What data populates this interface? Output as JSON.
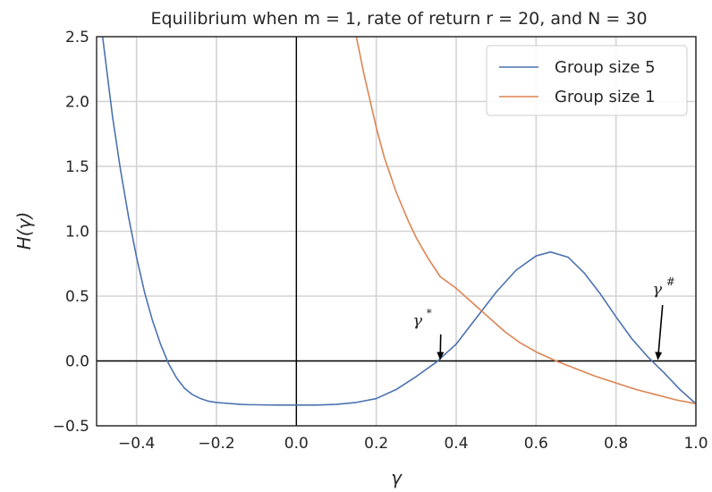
{
  "chart_data": {
    "type": "line",
    "title": "Equilibrium when m = 1, rate of return r = 20, and N = 30",
    "xlabel": "γ",
    "ylabel": "H(γ)",
    "xlim": [
      -0.5,
      1.0
    ],
    "ylim": [
      -0.5,
      2.5
    ],
    "x_ticks": [
      -0.4,
      -0.2,
      0.0,
      0.2,
      0.4,
      0.6,
      0.8,
      1.0
    ],
    "x_tick_labels": [
      "−0.4",
      "−0.2",
      "0.0",
      "0.2",
      "0.4",
      "0.6",
      "0.8",
      "1.0"
    ],
    "y_ticks": [
      -0.5,
      0.0,
      0.5,
      1.0,
      1.5,
      2.0,
      2.5
    ],
    "y_tick_labels": [
      "−0.5",
      "0.0",
      "0.5",
      "1.0",
      "1.5",
      "2.0",
      "2.5"
    ],
    "grid": true,
    "legend_position": "top-right",
    "series": [
      {
        "name": "Group size 5",
        "color": "#4c72b0",
        "x": [
          -0.485,
          -0.46,
          -0.44,
          -0.42,
          -0.4,
          -0.38,
          -0.36,
          -0.34,
          -0.32,
          -0.3,
          -0.28,
          -0.26,
          -0.24,
          -0.22,
          -0.2,
          -0.18,
          -0.16,
          -0.14,
          -0.12,
          -0.1,
          -0.05,
          0.0,
          0.05,
          0.1,
          0.15,
          0.2,
          0.25,
          0.3,
          0.35,
          0.4,
          0.45,
          0.5,
          0.55,
          0.6,
          0.636,
          0.68,
          0.72,
          0.76,
          0.8,
          0.84,
          0.88,
          0.92,
          0.96,
          1.0
        ],
        "y": [
          2.5,
          1.88,
          1.47,
          1.11,
          0.8,
          0.53,
          0.31,
          0.13,
          -0.02,
          -0.13,
          -0.21,
          -0.26,
          -0.29,
          -0.31,
          -0.32,
          -0.325,
          -0.33,
          -0.335,
          -0.337,
          -0.338,
          -0.34,
          -0.34,
          -0.34,
          -0.335,
          -0.32,
          -0.29,
          -0.22,
          -0.12,
          -0.01,
          0.13,
          0.33,
          0.53,
          0.7,
          0.81,
          0.84,
          0.8,
          0.68,
          0.52,
          0.34,
          0.17,
          0.03,
          -0.09,
          -0.22,
          -0.33
        ]
      },
      {
        "name": "Group size 1",
        "color": "#dd8452",
        "x": [
          0.15,
          0.17,
          0.2,
          0.22,
          0.25,
          0.28,
          0.3,
          0.33,
          0.36,
          0.4,
          0.44,
          0.48,
          0.52,
          0.56,
          0.6,
          0.65,
          0.7,
          0.75,
          0.8,
          0.85,
          0.9,
          0.95,
          1.0
        ],
        "y": [
          2.5,
          2.2,
          1.8,
          1.57,
          1.3,
          1.08,
          0.95,
          0.79,
          0.65,
          0.56,
          0.45,
          0.34,
          0.23,
          0.14,
          0.07,
          0.0,
          -0.06,
          -0.12,
          -0.17,
          -0.22,
          -0.26,
          -0.3,
          -0.33
        ]
      }
    ],
    "reference_lines": {
      "horizontal_y": 0.0,
      "vertical_x": 0.0
    },
    "annotations": [
      {
        "base": "γ",
        "sup": "*",
        "text_at": [
          0.33,
          0.26
        ],
        "arrow_to": [
          0.36,
          0.0
        ]
      },
      {
        "base": "γ",
        "sup": "#",
        "text_at": [
          0.93,
          0.5
        ],
        "arrow_to": [
          0.905,
          0.0
        ]
      }
    ]
  }
}
